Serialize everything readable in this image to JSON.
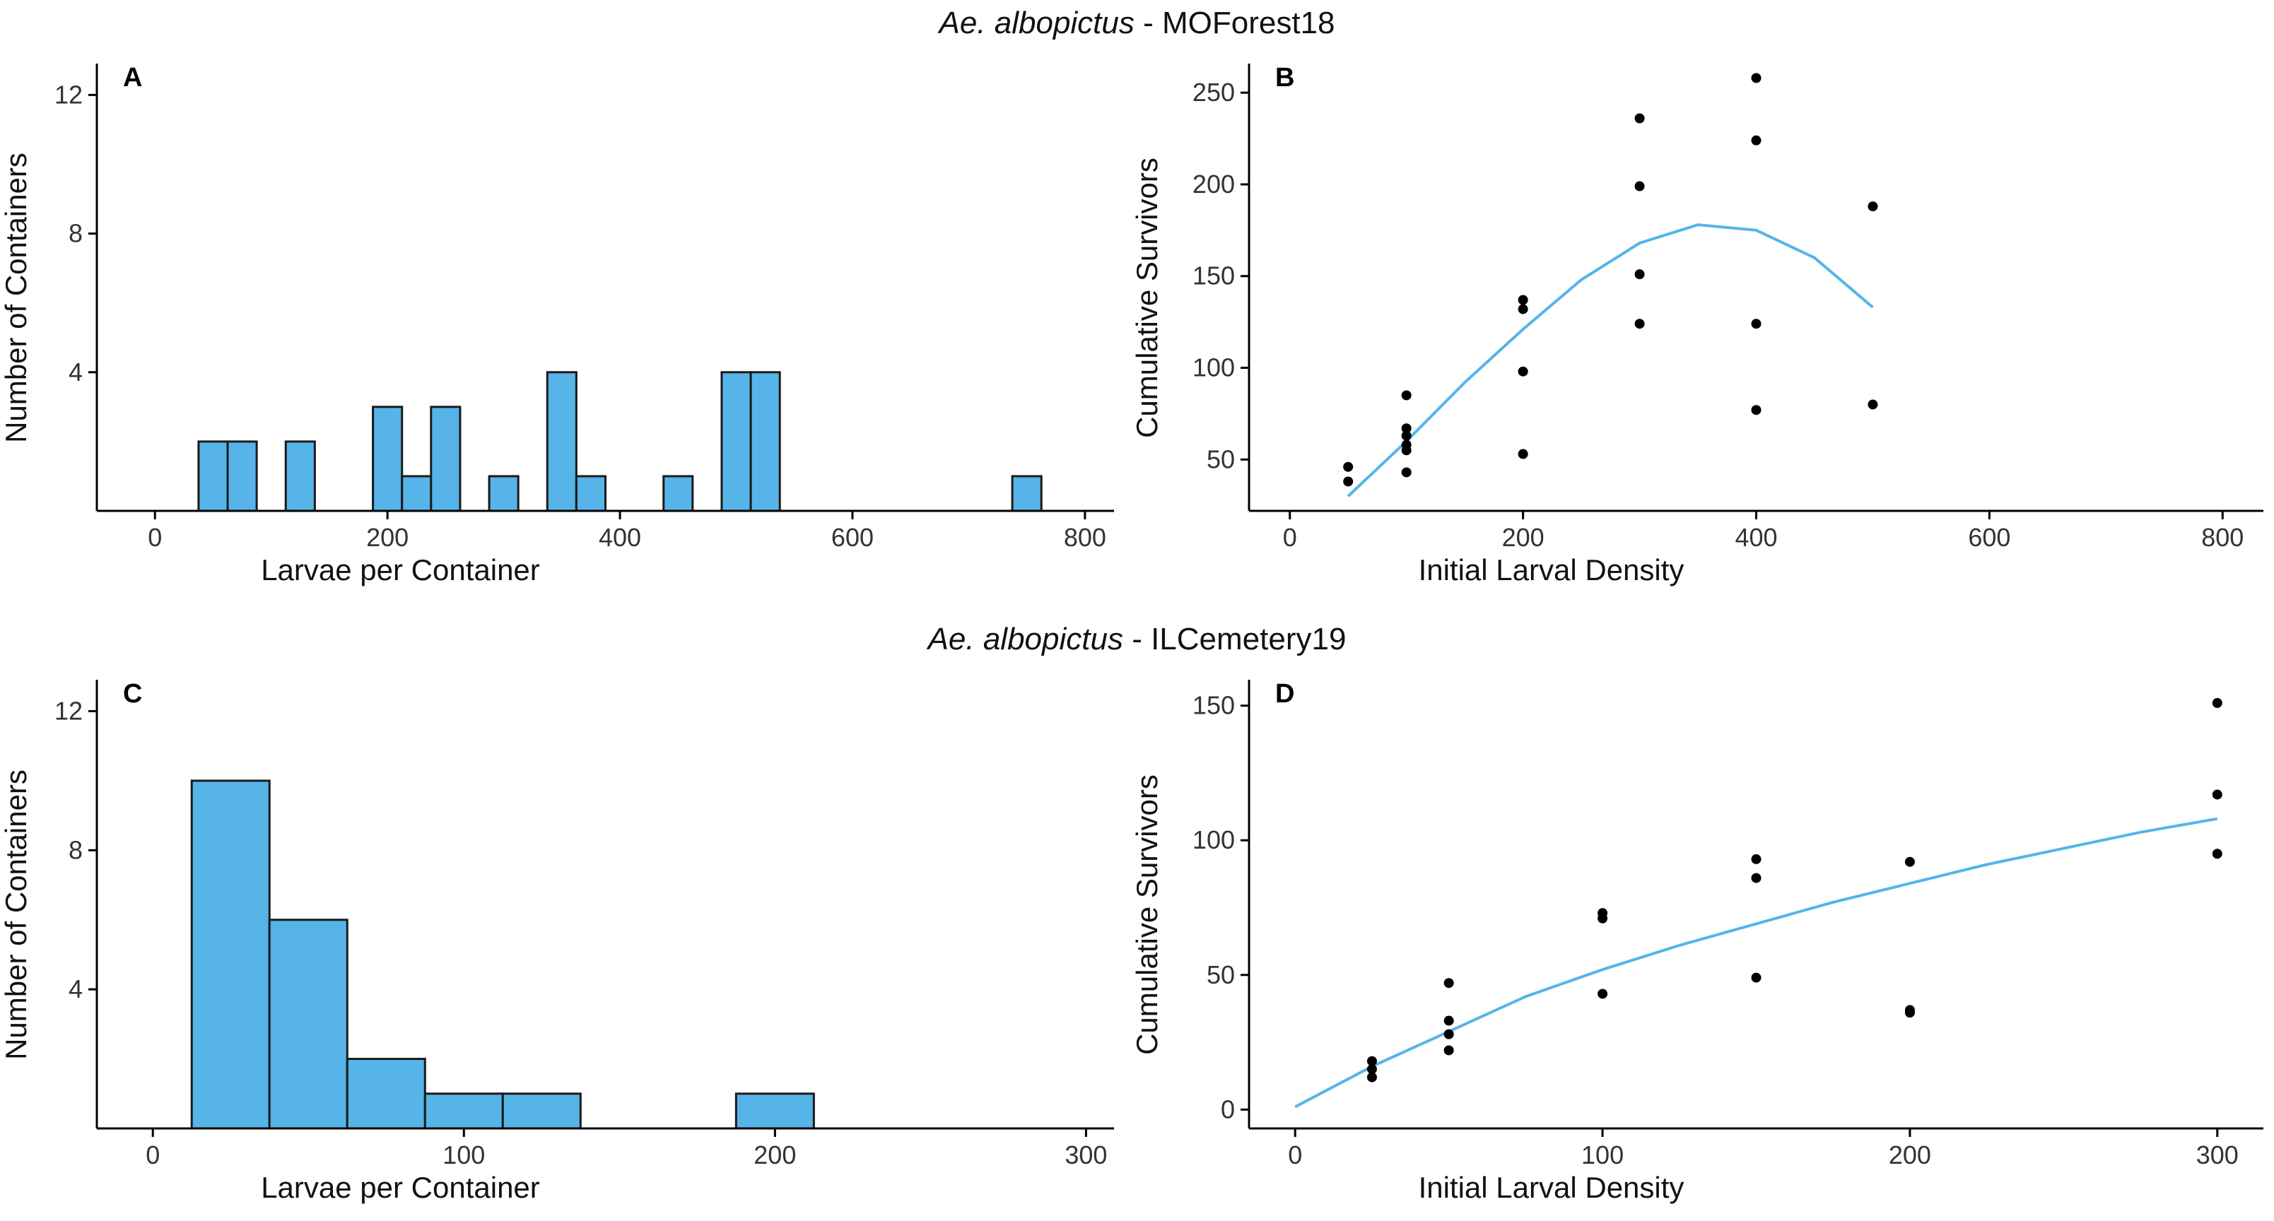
{
  "titles": {
    "top": {
      "species": "Ae. albopictus",
      "separator": " - ",
      "site": "MOForest18"
    },
    "bottom": {
      "species": "Ae. albopictus",
      "separator": " - ",
      "site": "ILCemetery19"
    }
  },
  "colors": {
    "bar_fill": "#56B4E9",
    "bar_stroke": "#1a1a1a",
    "fit_line": "#56B4E9",
    "points": "#000000",
    "axis": "#000000"
  },
  "chart_data": [
    {
      "panel": "A",
      "type": "bar",
      "subtype": "histogram",
      "xlabel": "Larvae per Container",
      "ylabel": "Number of Containers",
      "xlim": [
        -50,
        825
      ],
      "ylim": [
        0,
        12.7
      ],
      "xticks": [
        0,
        200,
        400,
        600,
        800
      ],
      "yticks": [
        4,
        8,
        12
      ],
      "bin_width": 25,
      "bins": [
        {
          "start": 37.5,
          "count": 2
        },
        {
          "start": 62.5,
          "count": 2
        },
        {
          "start": 112.5,
          "count": 2
        },
        {
          "start": 187.5,
          "count": 3
        },
        {
          "start": 212.5,
          "count": 1
        },
        {
          "start": 237.5,
          "count": 3
        },
        {
          "start": 287.5,
          "count": 1
        },
        {
          "start": 337.5,
          "count": 4
        },
        {
          "start": 362.5,
          "count": 1
        },
        {
          "start": 437.5,
          "count": 1
        },
        {
          "start": 487.5,
          "count": 4
        },
        {
          "start": 512.5,
          "count": 4
        },
        {
          "start": 737.5,
          "count": 1
        }
      ]
    },
    {
      "panel": "B",
      "type": "scatter",
      "xlabel": "Initial Larval Density",
      "ylabel": "Cumulative Survivors",
      "xlim": [
        -35,
        835
      ],
      "ylim": [
        22,
        262
      ],
      "xticks": [
        0,
        200,
        400,
        600,
        800
      ],
      "yticks": [
        50,
        100,
        150,
        200,
        250
      ],
      "points": [
        [
          50,
          46
        ],
        [
          50,
          38
        ],
        [
          100,
          85
        ],
        [
          100,
          67
        ],
        [
          100,
          63
        ],
        [
          100,
          58
        ],
        [
          100,
          55
        ],
        [
          100,
          43
        ],
        [
          200,
          137
        ],
        [
          200,
          132
        ],
        [
          200,
          98
        ],
        [
          200,
          53
        ],
        [
          300,
          236
        ],
        [
          300,
          199
        ],
        [
          300,
          151
        ],
        [
          300,
          124
        ],
        [
          400,
          258
        ],
        [
          400,
          224
        ],
        [
          400,
          124
        ],
        [
          400,
          77
        ],
        [
          500,
          188
        ],
        [
          500,
          80
        ]
      ],
      "fit": [
        [
          50,
          30
        ],
        [
          100,
          60
        ],
        [
          150,
          92
        ],
        [
          200,
          121
        ],
        [
          250,
          148
        ],
        [
          300,
          168
        ],
        [
          350,
          178
        ],
        [
          400,
          175
        ],
        [
          450,
          160
        ],
        [
          500,
          133
        ]
      ]
    },
    {
      "panel": "C",
      "type": "bar",
      "subtype": "histogram",
      "xlabel": "Larvae per Container",
      "ylabel": "Number of Containers",
      "xlim": [
        -18,
        309
      ],
      "ylim": [
        0,
        12.7
      ],
      "xticks": [
        0,
        100,
        200,
        300
      ],
      "yticks": [
        4,
        8,
        12
      ],
      "bin_width": 25,
      "bins": [
        {
          "start": 12.5,
          "count": 10
        },
        {
          "start": 37.5,
          "count": 6
        },
        {
          "start": 62.5,
          "count": 2
        },
        {
          "start": 87.5,
          "count": 1
        },
        {
          "start": 112.5,
          "count": 1
        },
        {
          "start": 187.5,
          "count": 1
        }
      ]
    },
    {
      "panel": "D",
      "type": "scatter",
      "xlabel": "Initial Larval Density",
      "ylabel": "Cumulative Survivors",
      "xlim": [
        -15,
        315
      ],
      "ylim": [
        -7,
        157
      ],
      "xticks": [
        0,
        100,
        200,
        300
      ],
      "yticks": [
        0,
        50,
        100,
        150
      ],
      "points": [
        [
          25,
          18
        ],
        [
          25,
          15
        ],
        [
          25,
          12
        ],
        [
          50,
          47
        ],
        [
          50,
          33
        ],
        [
          50,
          28
        ],
        [
          50,
          22
        ],
        [
          100,
          73
        ],
        [
          100,
          71
        ],
        [
          100,
          43
        ],
        [
          150,
          93
        ],
        [
          150,
          86
        ],
        [
          150,
          49
        ],
        [
          200,
          92
        ],
        [
          200,
          37
        ],
        [
          200,
          36
        ],
        [
          300,
          151
        ],
        [
          300,
          117
        ],
        [
          300,
          95
        ]
      ],
      "fit": [
        [
          0,
          1
        ],
        [
          25,
          16
        ],
        [
          50,
          29
        ],
        [
          75,
          42
        ],
        [
          100,
          52
        ],
        [
          125,
          61
        ],
        [
          150,
          69
        ],
        [
          175,
          77
        ],
        [
          200,
          84
        ],
        [
          225,
          91
        ],
        [
          250,
          97
        ],
        [
          275,
          103
        ],
        [
          300,
          108
        ]
      ]
    }
  ]
}
